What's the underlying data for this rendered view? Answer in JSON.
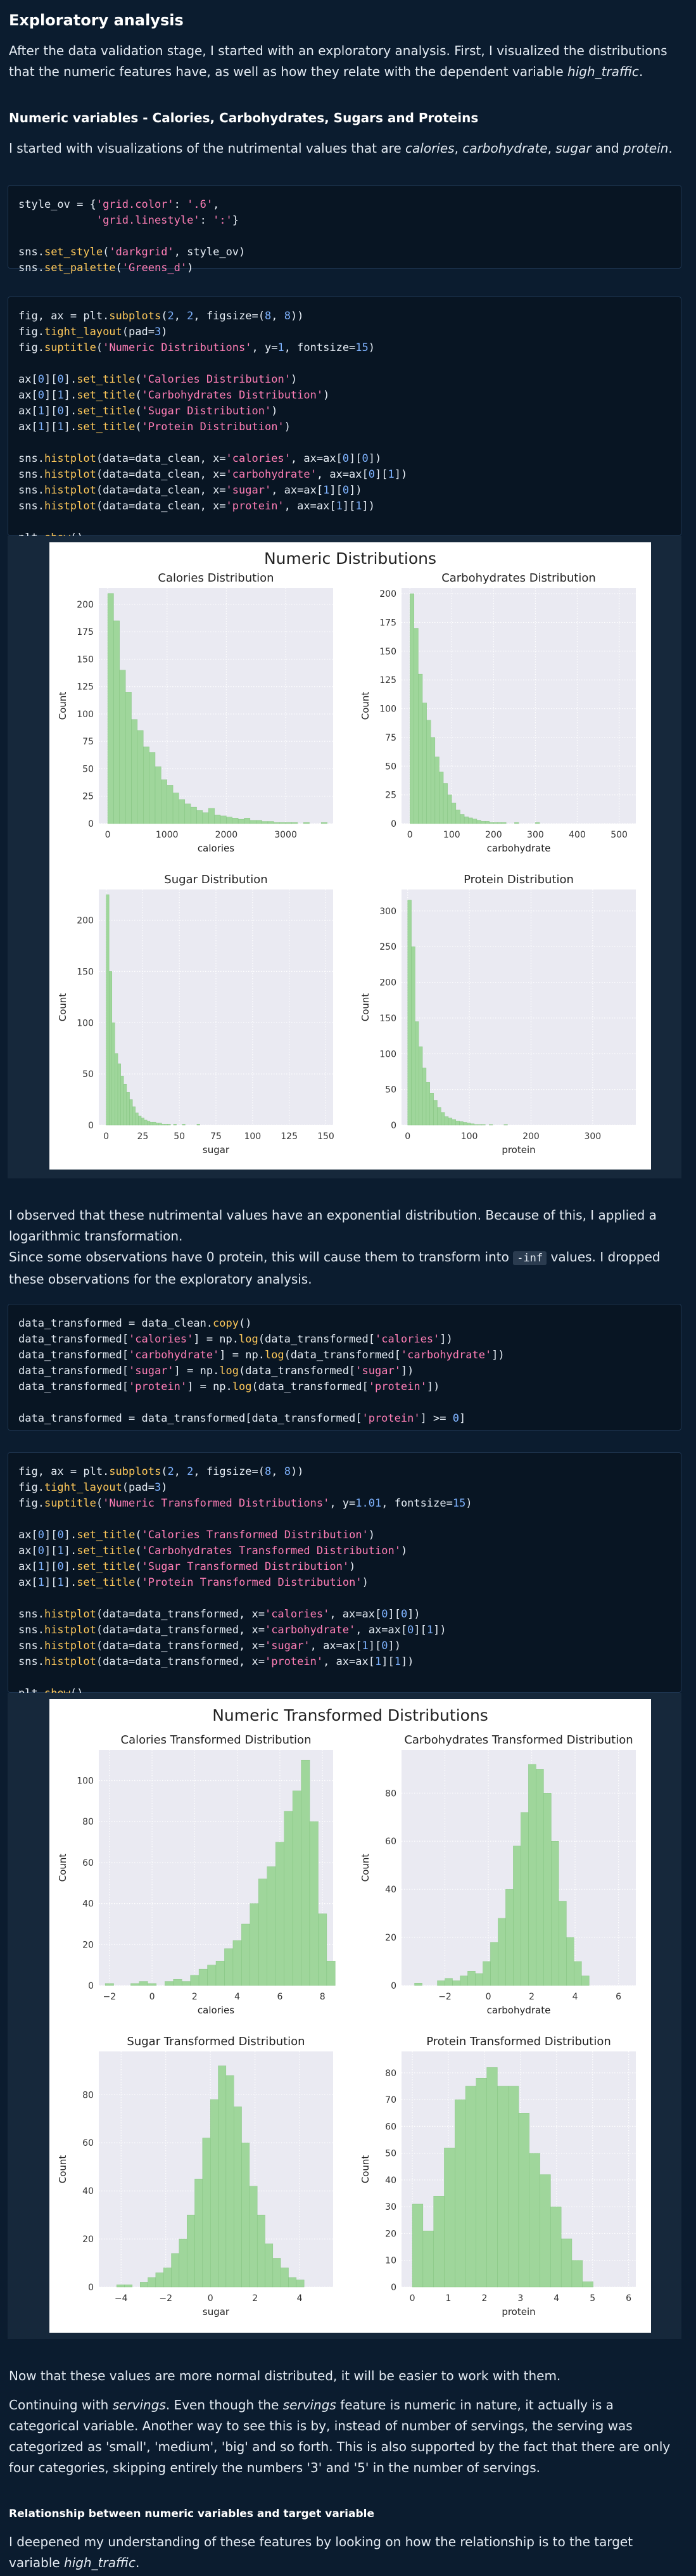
{
  "heading": "Exploratory analysis",
  "intro": {
    "a": "After the data validation stage, I started with an exploratory analysis. First, I visualized the distributions that the numeric features have, as well as how they relate with the dependent variable ",
    "em": "high_traffic",
    "b": "."
  },
  "section1_title": "Numeric variables - Calories, Carbohydrates, Sugars and Proteins",
  "section1_text": {
    "a": "I started with visualizations of the nutrimental values that are ",
    "calories": "calories",
    "c1": ", ",
    "carbohydrate": "carbohydrate",
    "c2": ", ",
    "sugar": "sugar",
    "c3": " and ",
    "protein": "protein",
    "c4": "."
  },
  "code_style": [
    "style_ov = {'grid.color': '.6',",
    "            'grid.linestyle': ':'}",
    "",
    "sns.set_style('darkgrid', style_ov)",
    "sns.set_palette('Greens_d')"
  ],
  "code_plot1": [
    "fig, ax = plt.subplots(2, 2, figsize=(8, 8))",
    "fig.tight_layout(pad=3)",
    "fig.suptitle('Numeric Distributions', y=1, fontsize=15)",
    "",
    "ax[0][0].set_title('Calories Distribution')",
    "ax[0][1].set_title('Carbohydrates Distribution')",
    "ax[1][0].set_title('Sugar Distribution')",
    "ax[1][1].set_title('Protein Distribution')",
    "",
    "sns.histplot(data=data_clean, x='calories', ax=ax[0][0])",
    "sns.histplot(data=data_clean, x='carbohydrate', ax=ax[0][1])",
    "sns.histplot(data=data_clean, x='sugar', ax=ax[1][0])",
    "sns.histplot(data=data_clean, x='protein', ax=ax[1][1])",
    "",
    "plt.show()"
  ],
  "obs_text": {
    "l1": "I observed that these nutrimental values have an exponential distribution. Because of this, I applied a logarithmic transformation.",
    "l2a": "Since some observations have 0 protein, this will cause them to transform into ",
    "l2code": "-inf",
    "l2b": " values. I dropped these observations for the exploratory analysis."
  },
  "code_transform": [
    "data_transformed = data_clean.copy()",
    "data_transformed['calories'] = np.log(data_transformed['calories'])",
    "data_transformed['carbohydrate'] = np.log(data_transformed['carbohydrate'])",
    "data_transformed['sugar'] = np.log(data_transformed['sugar'])",
    "data_transformed['protein'] = np.log(data_transformed['protein'])",
    "",
    "data_transformed = data_transformed[data_transformed['protein'] >= 0]"
  ],
  "code_plot2": [
    "fig, ax = plt.subplots(2, 2, figsize=(8, 8))",
    "fig.tight_layout(pad=3)",
    "fig.suptitle('Numeric Transformed Distributions', y=1.01, fontsize=15)",
    "",
    "ax[0][0].set_title('Calories Transformed Distribution')",
    "ax[0][1].set_title('Carbohydrates Transformed Distribution')",
    "ax[1][0].set_title('Sugar Transformed Distribution')",
    "ax[1][1].set_title('Protein Transformed Distribution')",
    "",
    "sns.histplot(data=data_transformed, x='calories', ax=ax[0][0])",
    "sns.histplot(data=data_transformed, x='carbohydrate', ax=ax[0][1])",
    "sns.histplot(data=data_transformed, x='sugar', ax=ax[1][0])",
    "sns.histplot(data=data_transformed, x='protein', ax=ax[1][1])",
    "",
    "plt.show()"
  ],
  "normal_text": "Now that these values are more normal distributed, it will be easier to work with them.",
  "servings_text": {
    "a": "Continuing with ",
    "em1": "servings",
    "b": ". Even though the ",
    "em2": "servings",
    "c": " feature is numeric in nature, it actually is a categorical variable. Another way to see this is by, instead of number of servings, the serving was categorized as 'small', 'medium', 'big' and so forth. This is also supported by the fact that there are only four categories, skipping entirely the numbers '3' and '5' in the number of servings."
  },
  "section2_title": "Relationship between numeric variables and target variable",
  "final_text": {
    "a": "I deepened my understanding of these features by looking on how the relationship is to the target variable ",
    "em": "high_traffic",
    "b": "."
  },
  "colors": {
    "bar": "#9fd69b",
    "bar_edge": "#7fc07b",
    "axes_bg": "#eaeaf2",
    "page_bg": "#0b1c2f"
  },
  "chart_data": [
    {
      "type": "bar",
      "suptitle": "Numeric Distributions",
      "panels": [
        {
          "title": "Calories Distribution",
          "xlabel": "calories",
          "ylabel": "Count",
          "xlim": [
            -150,
            3800
          ],
          "ylim": [
            0,
            215
          ],
          "xticks": [
            0,
            1000,
            2000,
            3000
          ],
          "yticks": [
            0,
            25,
            50,
            75,
            100,
            125,
            150,
            175,
            200
          ],
          "bin_start": 0,
          "bin_width": 100,
          "values": [
            210,
            185,
            140,
            120,
            95,
            85,
            70,
            65,
            52,
            40,
            35,
            28,
            22,
            18,
            15,
            12,
            10,
            14,
            8,
            7,
            6,
            5,
            4,
            5,
            3,
            3,
            2,
            2,
            1,
            1,
            1,
            1,
            0,
            1,
            0,
            0,
            1
          ]
        },
        {
          "title": "Carbohydrates Distribution",
          "xlabel": "carbohydrate",
          "ylabel": "Count",
          "xlim": [
            -20,
            540
          ],
          "ylim": [
            0,
            205
          ],
          "xticks": [
            0,
            100,
            200,
            300,
            400,
            500
          ],
          "yticks": [
            0,
            25,
            50,
            75,
            100,
            125,
            150,
            175,
            200
          ],
          "bin_start": 0,
          "bin_width": 10,
          "values": [
            200,
            170,
            130,
            105,
            90,
            75,
            58,
            45,
            35,
            25,
            18,
            12,
            8,
            6,
            5,
            4,
            3,
            2,
            2,
            1,
            1,
            1,
            1,
            0,
            0,
            1,
            0,
            0,
            0,
            0,
            1
          ]
        },
        {
          "title": "Sugar Distribution",
          "xlabel": "sugar",
          "ylabel": "Count",
          "xlim": [
            -5,
            155
          ],
          "ylim": [
            0,
            230
          ],
          "xticks": [
            0,
            25,
            50,
            75,
            100,
            125,
            150
          ],
          "yticks": [
            0,
            50,
            100,
            150,
            200
          ],
          "bin_start": 0,
          "bin_width": 2,
          "values": [
            225,
            150,
            100,
            70,
            60,
            48,
            40,
            32,
            25,
            18,
            12,
            9,
            7,
            5,
            4,
            3,
            3,
            2,
            2,
            1,
            1,
            1,
            0,
            1,
            0,
            0,
            1,
            0,
            0,
            0,
            0,
            1
          ]
        },
        {
          "title": "Protein Distribution",
          "xlabel": "protein",
          "ylabel": "Count",
          "xlim": [
            -10,
            370
          ],
          "ylim": [
            0,
            330
          ],
          "xticks": [
            0,
            100,
            200,
            300
          ],
          "yticks": [
            0,
            50,
            100,
            150,
            200,
            250,
            300
          ],
          "bin_start": 0,
          "bin_width": 6,
          "values": [
            315,
            250,
            145,
            110,
            80,
            60,
            45,
            35,
            25,
            18,
            12,
            10,
            8,
            6,
            5,
            4,
            3,
            2,
            1,
            1,
            1,
            0,
            1,
            0,
            0,
            0,
            1
          ]
        }
      ]
    },
    {
      "type": "bar",
      "suptitle": "Numeric Transformed Distributions",
      "panels": [
        {
          "title": "Calories Transformed Distribution",
          "xlabel": "calories",
          "ylabel": "Count",
          "xlim": [
            -2.5,
            8.5
          ],
          "ylim": [
            0,
            115
          ],
          "xticks": [
            -2,
            0,
            2,
            4,
            6,
            8
          ],
          "yticks": [
            0,
            20,
            40,
            60,
            80,
            100
          ],
          "bin_start": -2.2,
          "bin_width": 0.4,
          "values": [
            1,
            0,
            0,
            1,
            2,
            1,
            0,
            2,
            3,
            2,
            5,
            8,
            10,
            12,
            18,
            22,
            30,
            40,
            52,
            58,
            70,
            85,
            95,
            110,
            80,
            35,
            12
          ]
        },
        {
          "title": "Carbohydrates Transformed Distribution",
          "xlabel": "carbohydrate",
          "ylabel": "Count",
          "xlim": [
            -4,
            6.8
          ],
          "ylim": [
            0,
            98
          ],
          "xticks": [
            -2,
            0,
            2,
            4,
            6
          ],
          "yticks": [
            0,
            20,
            40,
            60,
            80
          ],
          "bin_start": -3.4,
          "bin_width": 0.35,
          "values": [
            1,
            0,
            0,
            2,
            3,
            2,
            4,
            6,
            5,
            10,
            18,
            28,
            40,
            58,
            72,
            92,
            90,
            80,
            60,
            35,
            20,
            10,
            4
          ]
        },
        {
          "title": "Sugar Transformed Distribution",
          "xlabel": "sugar",
          "ylabel": "Count",
          "xlim": [
            -5,
            5.5
          ],
          "ylim": [
            0,
            98
          ],
          "xticks": [
            -4,
            -2,
            0,
            2,
            4
          ],
          "yticks": [
            0,
            20,
            40,
            60,
            80
          ],
          "bin_start": -4.2,
          "bin_width": 0.35,
          "values": [
            1,
            1,
            0,
            2,
            4,
            6,
            8,
            14,
            20,
            30,
            45,
            62,
            78,
            92,
            88,
            75,
            60,
            42,
            30,
            18,
            12,
            8,
            4,
            3
          ]
        },
        {
          "title": "Protein Transformed Distribution",
          "xlabel": "protein",
          "ylabel": "Count",
          "xlim": [
            -0.3,
            6.2
          ],
          "ylim": [
            0,
            88
          ],
          "xticks": [
            0,
            1,
            2,
            3,
            4,
            5,
            6
          ],
          "yticks": [
            0,
            10,
            20,
            30,
            40,
            50,
            60,
            70,
            80
          ],
          "bin_start": 0,
          "bin_width": 0.295,
          "values": [
            31,
            21,
            34,
            52,
            70,
            75,
            78,
            82,
            75,
            75,
            65,
            50,
            42,
            30,
            18,
            10,
            2
          ]
        }
      ]
    }
  ]
}
